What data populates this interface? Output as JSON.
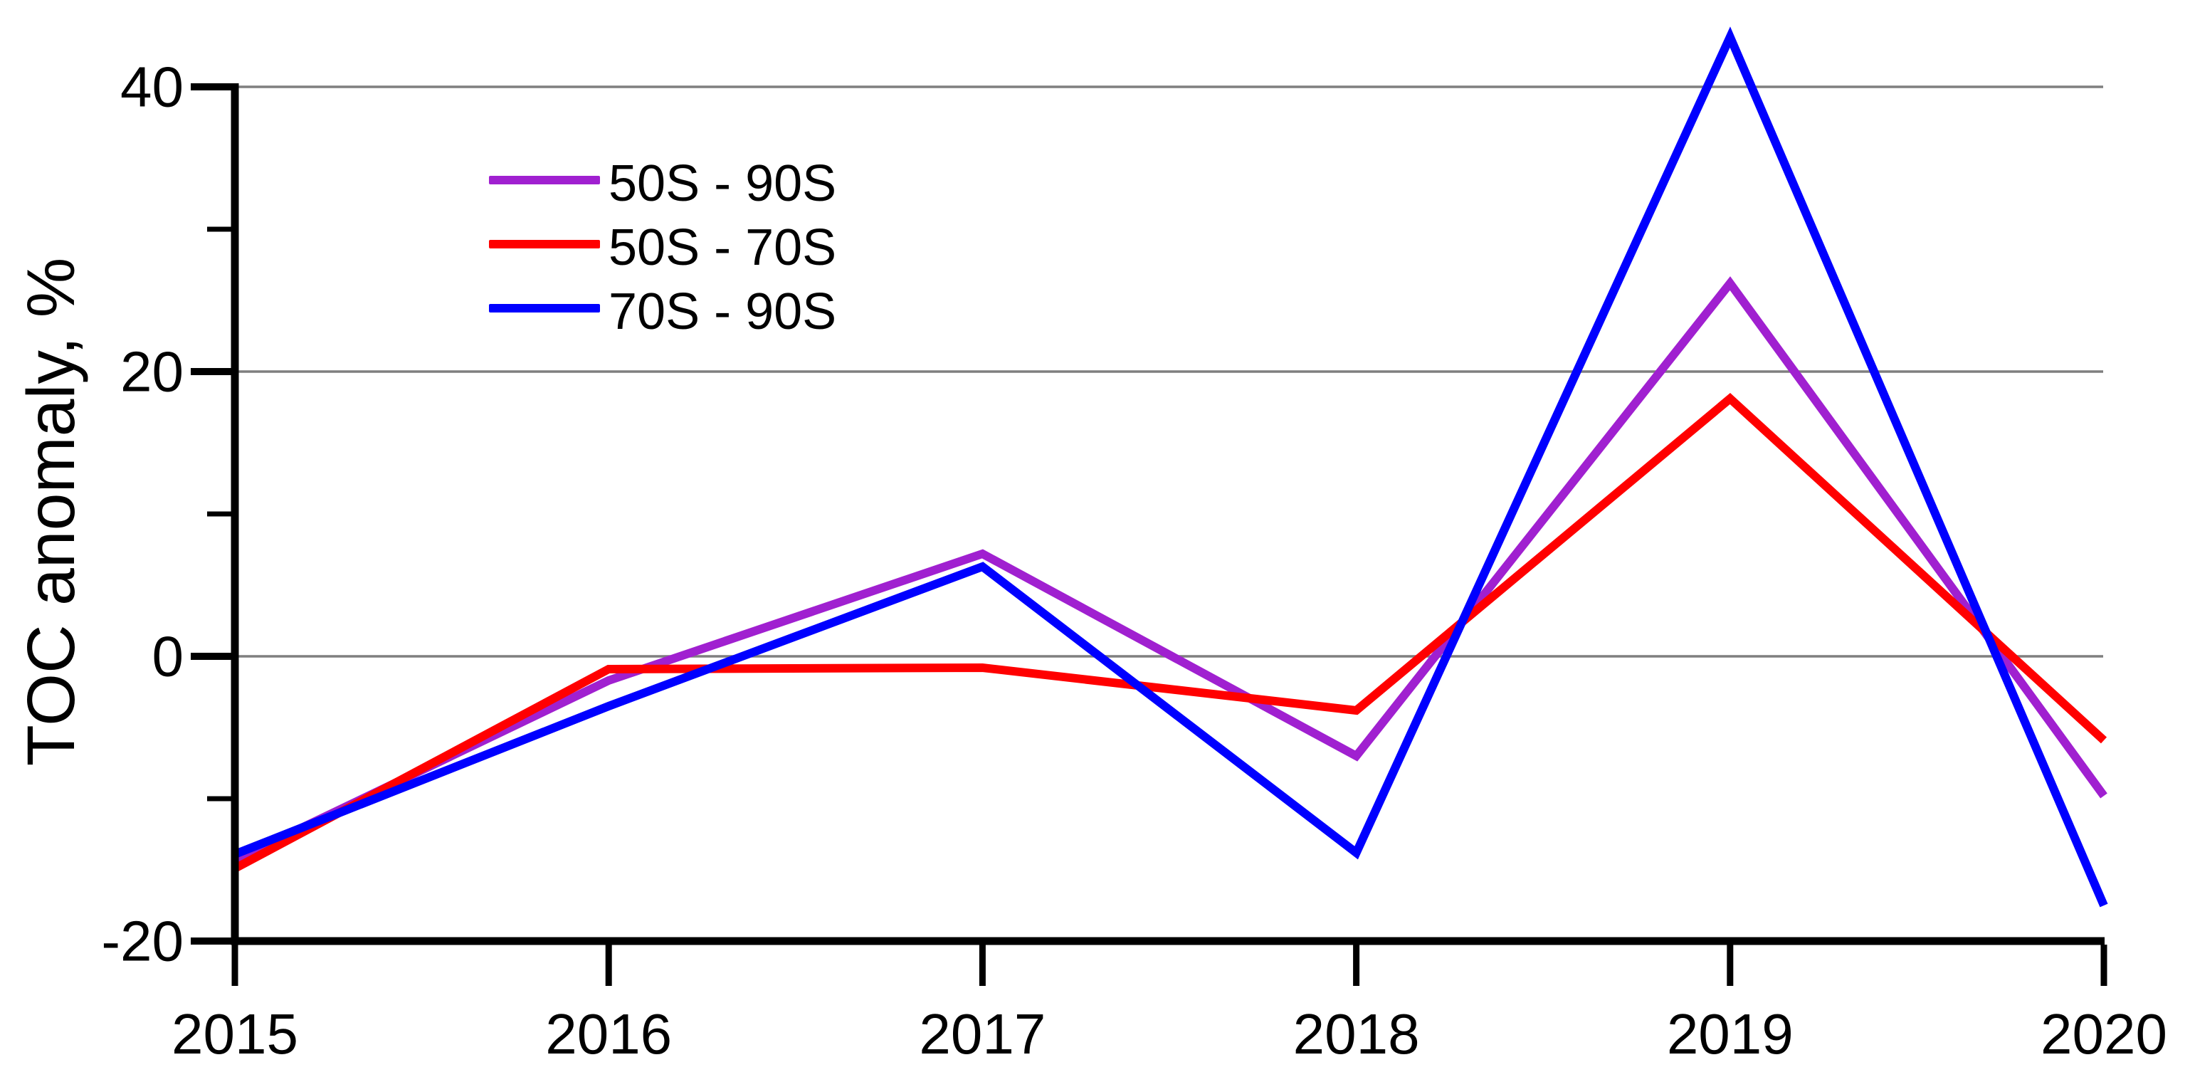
{
  "chart_data": {
    "type": "line",
    "title": "",
    "xlabel": "",
    "ylabel": "TOC anomaly, %",
    "x_tick_labels": [
      "2015",
      "2016",
      "2017",
      "2018",
      "2019",
      "2020"
    ],
    "x_values": [
      2015,
      2016,
      2017,
      2018,
      2019,
      2020
    ],
    "xlim": [
      2015,
      2020
    ],
    "ylim": [
      -20,
      40
    ],
    "y_major_ticks": [
      40,
      20,
      0,
      -20
    ],
    "y_tick_labels": [
      "40",
      "20",
      "0",
      "-20"
    ],
    "y_minor_ticks": [
      30,
      10,
      -10
    ],
    "gridlines_at": [
      40,
      20,
      0
    ],
    "grid_on": true,
    "grid_color": "#7f7f7f",
    "axis_color": "#000000",
    "legend_position": "upper-left-inside",
    "series": [
      {
        "name": "50S - 90S",
        "color": "#A020D0",
        "values": [
          -14.3,
          -1.7,
          7.2,
          -7.0,
          26.2,
          -9.8
        ]
      },
      {
        "name": "50S - 70S",
        "color": "#FF0000",
        "values": [
          -14.9,
          -0.9,
          -0.8,
          -3.8,
          18.1,
          -5.9
        ]
      },
      {
        "name": "70S - 90S",
        "color": "#0000FF",
        "values": [
          -13.9,
          -3.5,
          6.3,
          -13.8,
          43.5,
          -17.5
        ]
      }
    ]
  }
}
